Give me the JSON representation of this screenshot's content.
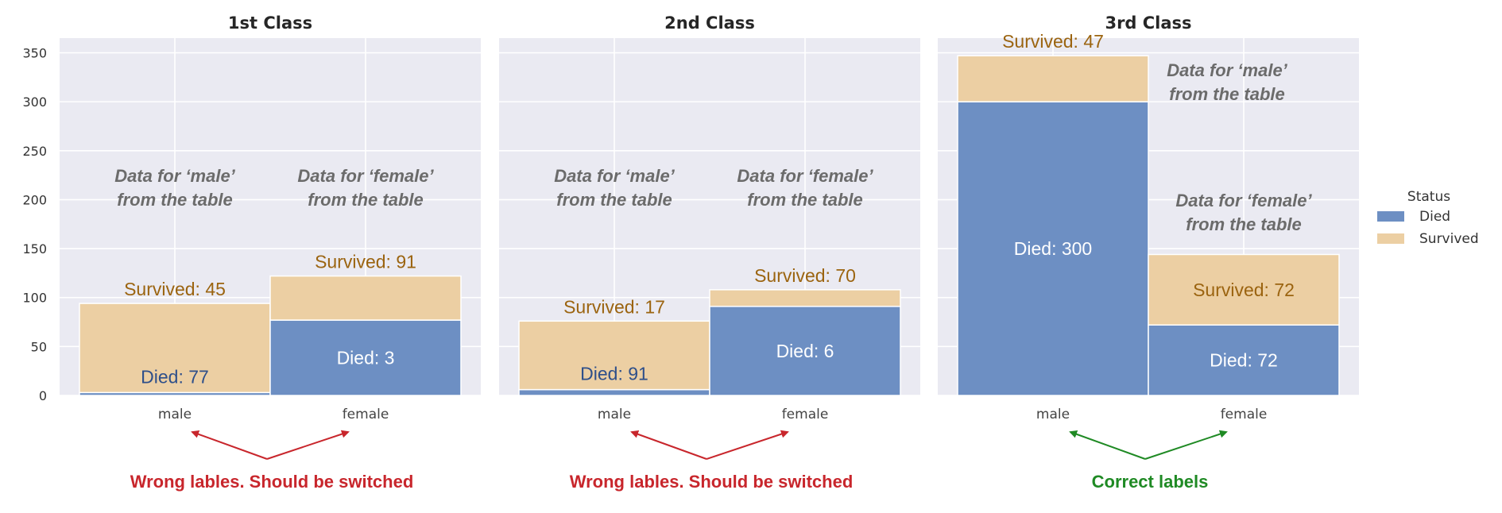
{
  "chart_data": {
    "type": "bar",
    "stacked": true,
    "ylim": [
      0,
      365
    ],
    "yticks": [
      0,
      50,
      100,
      150,
      200,
      250,
      300,
      350
    ],
    "grid": true,
    "colors": {
      "Died": "#6d8fc3",
      "Survived": "#eccfa3",
      "background": "#eaeaf2",
      "died_label_dark": "#2e4f8a",
      "survived_label": "#9b6410",
      "wrong": "#c8262c",
      "correct": "#1f8a24"
    },
    "legend": {
      "title": "Status",
      "entries": [
        "Died",
        "Survived"
      ],
      "placement": "right"
    },
    "panels": [
      {
        "title": "1st Class",
        "categories": [
          "male",
          "female"
        ],
        "series": [
          {
            "name": "Died",
            "values": [
              3,
              77
            ]
          },
          {
            "name": "Survived",
            "values": [
              91,
              45
            ]
          }
        ],
        "bar_labels": [
          {
            "died": "Died: 77",
            "survived": "Survived: 45",
            "died_label_inside": false
          },
          {
            "died": "Died: 3",
            "survived": "Survived: 91",
            "died_label_inside": true
          }
        ],
        "annotations": [
          {
            "line1": "Data for ‘male’",
            "line2": "from the table"
          },
          {
            "line1": "Data for ‘female’",
            "line2": "from the table"
          }
        ],
        "note": {
          "text": "Wrong lables. Should be switched",
          "kind": "wrong"
        }
      },
      {
        "title": "2nd Class",
        "categories": [
          "male",
          "female"
        ],
        "series": [
          {
            "name": "Died",
            "values": [
              6,
              91
            ]
          },
          {
            "name": "Survived",
            "values": [
              70,
              17
            ]
          }
        ],
        "bar_labels": [
          {
            "died": "Died: 91",
            "survived": "Survived: 17",
            "died_label_inside": false
          },
          {
            "died": "Died: 6",
            "survived": "Survived: 70",
            "died_label_inside": true
          }
        ],
        "annotations": [
          {
            "line1": "Data for ‘male’",
            "line2": "from the table"
          },
          {
            "line1": "Data for ‘female’",
            "line2": "from the table"
          }
        ],
        "note": {
          "text": "Wrong lables. Should be switched",
          "kind": "wrong"
        }
      },
      {
        "title": "3rd Class",
        "categories": [
          "male",
          "female"
        ],
        "series": [
          {
            "name": "Died",
            "values": [
              300,
              72
            ]
          },
          {
            "name": "Survived",
            "values": [
              47,
              72
            ]
          }
        ],
        "bar_labels": [
          {
            "died": "Died: 300",
            "survived": "Survived: 47",
            "died_label_inside": true
          },
          {
            "died": "Died: 72",
            "survived": "Survived: 72",
            "died_label_inside": true
          }
        ],
        "annotations": [
          {
            "line1": "Data for ‘male’",
            "line2": "from the table"
          },
          {
            "line1": "Data for ‘female’",
            "line2": "from the table"
          }
        ],
        "note": {
          "text": "Correct labels",
          "kind": "correct"
        }
      }
    ]
  }
}
